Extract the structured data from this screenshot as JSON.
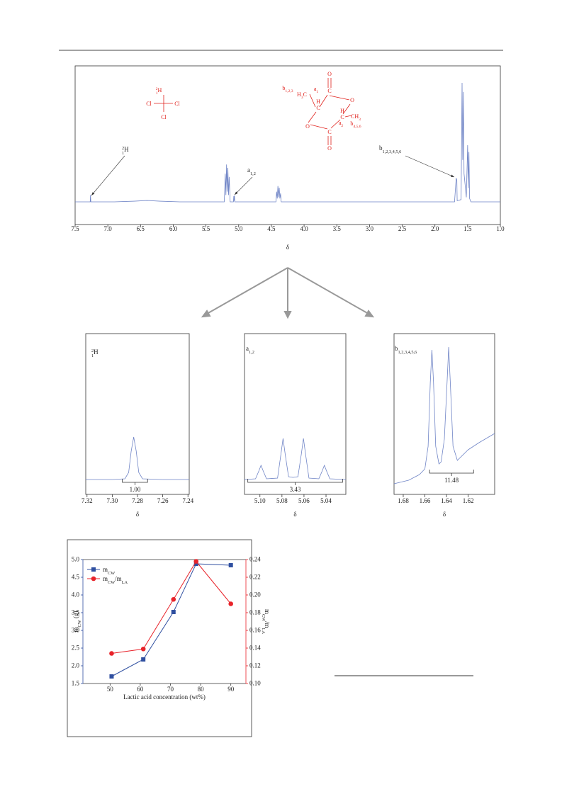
{
  "chart_data": [
    {
      "type": "line",
      "xlabel": "δ",
      "color": "#6f84c6",
      "xlim": [
        7.5,
        1.0
      ],
      "ylim": [
        -20,
        120
      ],
      "xticks": [
        7.5,
        {
          "value": 7,
          "label": "7.0"
        },
        6.5,
        {
          "value": 6,
          "label": "6.0"
        },
        5.5,
        {
          "value": 5,
          "label": "5.0"
        },
        4.5,
        {
          "value": 4,
          "label": "4.0"
        },
        3.5,
        {
          "value": 3,
          "label": "3.0"
        },
        2.5,
        {
          "value": 2,
          "label": "2.0"
        },
        1.5,
        {
          "value": 1,
          "label": "1.0"
        }
      ],
      "x": [
        7.5,
        7.27,
        7.265,
        7.26,
        6.9,
        6.6,
        6.4,
        6.2,
        5.9,
        5.22,
        5.205,
        5.195,
        5.185,
        5.175,
        5.165,
        5.155,
        5.145,
        5.13,
        5.08,
        5.075,
        5.07,
        5.065,
        5.06,
        4.43,
        4.42,
        4.41,
        4.4,
        4.39,
        4.38,
        4.37,
        4.36,
        4.35,
        1.7,
        1.675,
        1.665,
        1.66,
        1.6,
        1.585,
        1.575,
        1.565,
        1.555,
        1.52,
        1.5,
        1.49,
        1.48,
        1.47,
        1.45,
        1.0
      ],
      "values": [
        0,
        0,
        6,
        0,
        0,
        0.6,
        1.2,
        0.6,
        0,
        0,
        25,
        6,
        33,
        9,
        30,
        6,
        22,
        0,
        0,
        5,
        1,
        5.6,
        0,
        0,
        9,
        3,
        14,
        4,
        12.5,
        3,
        7.5,
        0,
        0,
        21,
        19,
        1,
        2,
        105,
        37,
        97,
        25,
        4,
        50,
        12,
        44,
        3,
        0,
        0
      ],
      "annotations": [
        {
          "parts": [
            {
              "sup": "2"
            },
            {
              "sub": "1"
            },
            {
              "t": "H"
            }
          ]
        },
        {
          "parts": [
            {
              "t": "a"
            },
            {
              "sub": "1,2"
            }
          ]
        },
        {
          "parts": [
            {
              "t": "b"
            },
            {
              "sub": "1,2,3,4,5,6"
            }
          ]
        }
      ],
      "structures": [
        {
          "labels": [
            {
              "parts": [
                {
                  "sup": "2"
                },
                {
                  "sub": "1"
                },
                {
                  "t": "H"
                }
              ]
            },
            {
              "parts": [
                {
                  "t": "Cl"
                }
              ]
            },
            {
              "parts": [
                {
                  "t": "Cl"
                }
              ]
            },
            {
              "parts": [
                {
                  "t": "Cl"
                }
              ]
            }
          ]
        },
        {
          "labels": [
            {
              "parts": [
                {
                  "t": "O"
                }
              ]
            },
            {
              "parts": [
                {
                  "t": "C"
                }
              ]
            },
            {
              "parts": [
                {
                  "t": "O"
                }
              ]
            },
            {
              "parts": [
                {
                  "t": "C"
                }
              ]
            },
            {
              "parts": [
                {
                  "t": "H"
                }
              ]
            },
            {
              "parts": [
                {
                  "t": "C"
                }
              ]
            },
            {
              "parts": [
                {
                  "t": "O"
                }
              ]
            },
            {
              "parts": [
                {
                  "t": "O"
                }
              ]
            },
            {
              "parts": [
                {
                  "t": "C"
                }
              ]
            },
            {
              "parts": [
                {
                  "t": "H"
                }
              ]
            },
            {
              "parts": [
                {
                  "t": "H"
                },
                {
                  "sub": "3"
                },
                {
                  "t": "C"
                }
              ]
            },
            {
              "parts": [
                {
                  "t": "CH"
                },
                {
                  "sub": "3"
                }
              ]
            },
            {
              "parts": [
                {
                  "t": "b"
                },
                {
                  "sub": "1,2,3"
                }
              ]
            },
            {
              "parts": [
                {
                  "t": "a"
                },
                {
                  "sub": "1"
                }
              ]
            },
            {
              "parts": [
                {
                  "t": "a"
                },
                {
                  "sub": "2"
                }
              ]
            },
            {
              "parts": [
                {
                  "t": "b"
                },
                {
                  "sub": "4,5,6"
                }
              ]
            }
          ]
        }
      ]
    },
    {
      "type": "line",
      "title": [
        {
          "sup": "2"
        },
        {
          "sub": "1"
        },
        {
          "t": "H"
        }
      ],
      "xlabel": "δ",
      "color": "#6f84c6",
      "xlim": [
        7.321,
        7.239
      ],
      "ylim": [
        -21,
        206
      ],
      "xticks": [
        7.32,
        {
          "value": 7.3,
          "label": "7.30"
        },
        7.28,
        7.26,
        7.24
      ],
      "x": [
        7.321,
        7.3,
        7.29,
        7.287,
        7.285,
        7.283,
        7.281,
        7.279,
        7.276,
        7.26,
        7.239
      ],
      "values": [
        0,
        0,
        1,
        10,
        40,
        60,
        40,
        10,
        1,
        0,
        0
      ],
      "integral": {
        "range": [
          7.292,
          7.272
        ],
        "value": 1,
        "label": "1.00"
      }
    },
    {
      "type": "line",
      "title": [
        {
          "t": "a"
        },
        {
          "sub": "1,2"
        }
      ],
      "xlabel": "δ",
      "color": "#6f84c6",
      "xlim": [
        5.114,
        5.022
      ],
      "ylim": [
        -21,
        206
      ],
      "xticks": [
        {
          "value": 5.1,
          "label": "5.10"
        },
        5.08,
        5.06,
        5.04
      ],
      "x": [
        5.114,
        5.104,
        5.101,
        5.099,
        5.097,
        5.094,
        5.084,
        5.081,
        5.079,
        5.077,
        5.074,
        5.07,
        5.0655,
        5.0625,
        5.0605,
        5.0585,
        5.0555,
        5.0465,
        5.0435,
        5.0415,
        5.0395,
        5.0365,
        5.022
      ],
      "values": [
        0,
        1,
        12,
        20,
        12,
        1,
        2,
        35,
        58,
        35,
        4,
        3,
        4,
        35,
        58,
        35,
        2,
        1,
        12,
        20,
        12,
        1,
        0
      ],
      "integral": {
        "range": [
          5.111,
          5.025
        ],
        "value": 3.43
      }
    },
    {
      "type": "line",
      "title": [
        {
          "t": "b"
        },
        {
          "sub": "1,2,3,4,5,6"
        }
      ],
      "xlabel": "δ",
      "color": "#6f84c6",
      "xlim": [
        1.6885,
        1.5955
      ],
      "ylim": [
        -8,
        219
      ],
      "xticks": [
        1.68,
        1.66,
        1.64,
        1.62
      ],
      "x": [
        1.6885,
        1.675,
        1.665,
        1.66,
        1.657,
        1.655,
        1.6535,
        1.652,
        1.65,
        1.647,
        1.645,
        1.642,
        1.6395,
        1.638,
        1.6365,
        1.634,
        1.63,
        1.62,
        1.61,
        1.5955
      ],
      "values": [
        7,
        12,
        20,
        28,
        60,
        150,
        196,
        150,
        60,
        35,
        38,
        70,
        150,
        200,
        150,
        60,
        40,
        55,
        65,
        78
      ],
      "integral": {
        "range": [
          1.6557,
          1.615
        ],
        "value": 11.48
      }
    },
    {
      "type": "line",
      "xlabel": "Lactic acid concentration (wt%)",
      "ylabel": [
        {
          "t": "m"
        },
        {
          "sub": "CW"
        },
        {
          "t": " (g)"
        }
      ],
      "y2label": [
        {
          "t": "m"
        },
        {
          "sub": "CW"
        },
        {
          "t": "/m"
        },
        {
          "sub": "LA"
        }
      ],
      "xlim": [
        41,
        95
      ],
      "ylim": [
        1.5,
        5.0
      ],
      "y2lim": [
        0.1,
        0.24
      ],
      "xticks": [
        50,
        60,
        70,
        80,
        90
      ],
      "yticks": [
        1.5,
        {
          "value": 2,
          "label": "2.0"
        },
        2.5,
        {
          "value": 3,
          "label": "3.0"
        },
        3.5,
        {
          "value": 4,
          "label": "4.0"
        },
        4.5,
        {
          "value": 5,
          "label": "5.0"
        }
      ],
      "y2ticks": [
        {
          "value": 0.1,
          "label": "0.10"
        },
        0.12,
        0.14,
        0.16,
        0.18,
        {
          "value": 0.2,
          "label": "0.20"
        },
        0.22,
        0.24
      ],
      "legend": "upper left",
      "x": [
        50.5,
        61,
        71,
        78.5,
        90
      ],
      "series": [
        {
          "name": [
            {
              "t": "m"
            },
            {
              "sub": "CW"
            }
          ],
          "color": "#2f4fa0",
          "marker": "square",
          "values": [
            1.7,
            2.18,
            3.52,
            4.88,
            4.84
          ]
        },
        {
          "name": [
            {
              "t": "m"
            },
            {
              "sub": "CW"
            },
            {
              "t": "/m"
            },
            {
              "sub": "LA"
            }
          ],
          "color": "#e8232a",
          "marker": "circle",
          "axis": "y2",
          "values": [
            0.134,
            0.139,
            0.195,
            0.238,
            0.19
          ]
        }
      ]
    }
  ]
}
